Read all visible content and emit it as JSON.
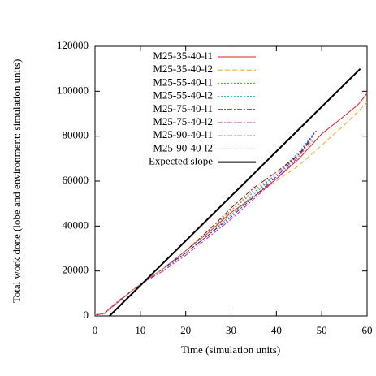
{
  "chart_data": {
    "type": "line",
    "xlabel": "Time (simulation units)",
    "ylabel": "Total work done (lobe and environment: simulation units)",
    "xlim": [
      0,
      60
    ],
    "xticks": [
      0,
      10,
      20,
      30,
      40,
      50,
      60
    ],
    "ylim": [
      0,
      120000
    ],
    "yticks": [
      0,
      20000,
      40000,
      60000,
      80000,
      100000,
      120000
    ],
    "legend": "top-left",
    "series": [
      {
        "name": "M25-35-40-l1",
        "color": "#e41a1c",
        "style": "solid",
        "x": [
          0,
          2,
          3,
          5,
          8,
          10,
          15,
          20,
          25,
          30,
          35,
          40,
          45,
          50,
          55,
          58,
          60
        ],
        "values": [
          500,
          1000,
          3000,
          6000,
          11000,
          14000,
          21000,
          29000,
          37000,
          46000,
          53000,
          61000,
          70000,
          81000,
          89000,
          94000,
          99000
        ]
      },
      {
        "name": "M25-35-40-l2",
        "color": "#f5a623",
        "style": "dashed",
        "x": [
          0,
          2,
          3,
          5,
          8,
          10,
          15,
          20,
          25,
          30,
          35,
          40,
          45,
          50,
          55,
          58,
          60
        ],
        "values": [
          500,
          1000,
          2500,
          6000,
          11000,
          14000,
          21000,
          28000,
          36000,
          45000,
          53000,
          60000,
          67000,
          76000,
          85000,
          91000,
          95000
        ]
      },
      {
        "name": "M25-55-40-l1",
        "color": "#1fbf1f",
        "style": "dotted",
        "x": [
          0,
          2,
          3,
          5,
          8,
          10,
          15,
          20,
          25,
          30,
          35,
          40,
          45,
          48
        ],
        "values": [
          500,
          800,
          3000,
          6000,
          11000,
          14000,
          21000,
          29000,
          38000,
          47000,
          55000,
          63000,
          72000,
          80000
        ]
      },
      {
        "name": "M25-55-40-l2",
        "color": "#20b2c8",
        "style": "dotted",
        "x": [
          0,
          2,
          3,
          5,
          8,
          10,
          15,
          20,
          25,
          30,
          35,
          40,
          45,
          48.5
        ],
        "values": [
          500,
          900,
          2800,
          6000,
          11000,
          14000,
          20000,
          28000,
          36000,
          45000,
          54000,
          63000,
          73000,
          82000
        ]
      },
      {
        "name": "M25-75-40-l1",
        "color": "#1f2fb4",
        "style": "dashdot",
        "x": [
          0,
          2,
          3,
          5,
          8,
          10,
          15,
          20,
          25,
          30,
          35,
          40,
          45,
          49
        ],
        "values": [
          500,
          900,
          2800,
          6000,
          11000,
          14000,
          21000,
          28000,
          36000,
          44000,
          53000,
          62000,
          72000,
          83000
        ]
      },
      {
        "name": "M25-75-40-l2",
        "color": "#d11fd1",
        "style": "dashdot",
        "x": [
          0,
          2,
          3,
          5,
          8,
          10,
          15,
          20,
          25,
          30,
          35,
          40,
          45,
          48
        ],
        "values": [
          500,
          900,
          2700,
          6000,
          11000,
          14000,
          20000,
          27000,
          35000,
          43000,
          52000,
          61000,
          71000,
          80000
        ]
      },
      {
        "name": "M25-90-40-l1",
        "color": "#8b1a1a",
        "style": "dashdot",
        "x": [
          0,
          2,
          3,
          5,
          8,
          10,
          15,
          20,
          25,
          30,
          35,
          40,
          45,
          48
        ],
        "values": [
          500,
          900,
          3000,
          6500,
          11000,
          14000,
          21000,
          29000,
          38000,
          48000,
          57000,
          64000,
          72000,
          79000
        ]
      },
      {
        "name": "M25-90-40-l2",
        "color": "#f08080",
        "style": "dotted",
        "x": [
          0,
          2,
          3,
          5,
          8,
          10,
          15,
          20,
          25,
          30,
          35,
          40,
          45,
          48
        ],
        "values": [
          500,
          900,
          3000,
          6500,
          11000,
          14000,
          21000,
          29000,
          37000,
          47000,
          56000,
          63000,
          71000,
          78000
        ]
      },
      {
        "name": "Expected slope",
        "color": "#000000",
        "style": "thick",
        "x": [
          3.2,
          58.5
        ],
        "values": [
          0,
          110000
        ]
      }
    ]
  }
}
